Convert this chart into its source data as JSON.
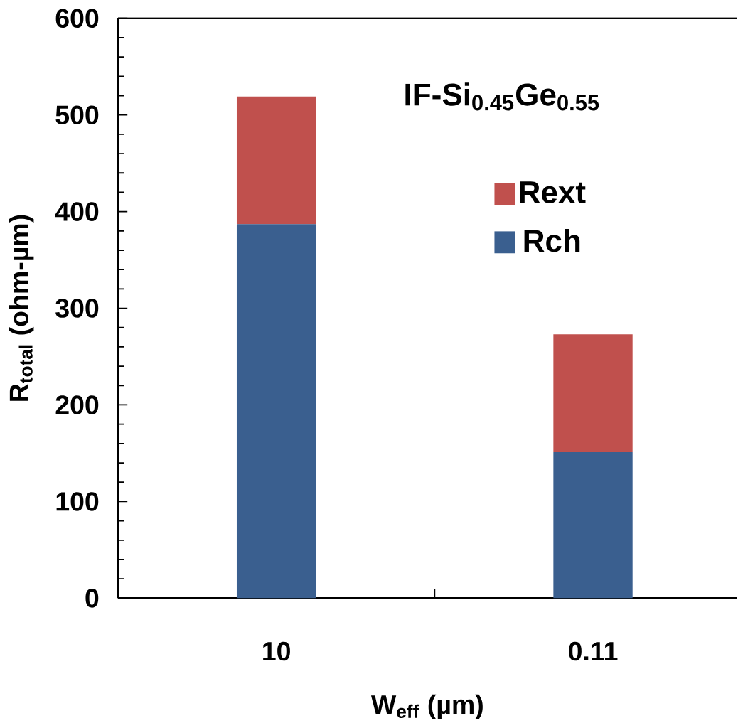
{
  "chart_data": {
    "type": "bar",
    "stacked": true,
    "xlabel": "W$_{eff}$ (µm)",
    "ylabel": "R$_{total}$ (ohm-µm)",
    "annotations": [
      "IF-Si$_{0.45}$Ge$_{0.55}$"
    ],
    "categories": [
      "10",
      "0.11"
    ],
    "series": [
      {
        "name": "Rch",
        "color": "#3a5f8f",
        "values": [
          387,
          151
        ]
      },
      {
        "name": "Rext",
        "color": "#c0504d",
        "values": [
          132,
          122
        ]
      }
    ],
    "ylim": [
      0,
      600
    ],
    "yticks": [
      0,
      100,
      200,
      300,
      400,
      500,
      600
    ],
    "legend": "top right"
  }
}
